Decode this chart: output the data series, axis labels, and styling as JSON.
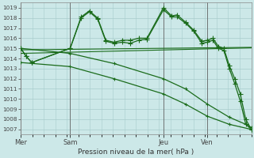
{
  "bg_color": "#cce8e8",
  "grid_color": "#a8cccc",
  "line_color": "#1a6b1a",
  "xlabel": "Pression niveau de la mer( hPa )",
  "ylim": [
    1006.5,
    1019.5
  ],
  "yticks": [
    1007,
    1008,
    1009,
    1010,
    1011,
    1012,
    1013,
    1014,
    1015,
    1016,
    1017,
    1018,
    1019
  ],
  "day_labels": [
    "Mer",
    "Sam",
    "Jeu",
    "Ven"
  ],
  "day_positions": [
    0,
    18,
    52,
    68
  ],
  "xlim": [
    0,
    84
  ],
  "series_main": [
    [
      0,
      1015.0
    ],
    [
      2,
      1014.2
    ],
    [
      4,
      1013.6
    ],
    [
      18,
      1015.0
    ],
    [
      22,
      1018.1
    ],
    [
      25,
      1018.7
    ],
    [
      28,
      1018.0
    ],
    [
      31,
      1015.8
    ],
    [
      34,
      1015.6
    ],
    [
      37,
      1015.8
    ],
    [
      40,
      1015.8
    ],
    [
      43,
      1016.0
    ],
    [
      46,
      1016.0
    ],
    [
      52,
      1019.0
    ],
    [
      55,
      1018.2
    ],
    [
      57,
      1018.3
    ],
    [
      60,
      1017.6
    ],
    [
      63,
      1016.8
    ],
    [
      66,
      1015.7
    ],
    [
      68,
      1015.8
    ],
    [
      70,
      1016.0
    ],
    [
      72,
      1015.2
    ],
    [
      74,
      1015.0
    ],
    [
      76,
      1013.3
    ],
    [
      78,
      1012.0
    ],
    [
      80,
      1010.5
    ],
    [
      82,
      1008.0
    ],
    [
      84,
      1007.0
    ]
  ],
  "series_main2": [
    [
      0,
      1015.0
    ],
    [
      2,
      1014.2
    ],
    [
      4,
      1013.6
    ],
    [
      18,
      1015.0
    ],
    [
      22,
      1018.0
    ],
    [
      25,
      1018.6
    ],
    [
      28,
      1017.9
    ],
    [
      31,
      1015.7
    ],
    [
      34,
      1015.5
    ],
    [
      37,
      1015.6
    ],
    [
      40,
      1015.5
    ],
    [
      43,
      1015.8
    ],
    [
      46,
      1015.9
    ],
    [
      52,
      1018.8
    ],
    [
      55,
      1018.1
    ],
    [
      57,
      1018.1
    ],
    [
      60,
      1017.5
    ],
    [
      63,
      1016.7
    ],
    [
      66,
      1015.5
    ],
    [
      68,
      1015.6
    ],
    [
      70,
      1015.8
    ],
    [
      72,
      1015.0
    ],
    [
      74,
      1014.8
    ],
    [
      76,
      1013.0
    ],
    [
      78,
      1011.5
    ],
    [
      80,
      1009.8
    ],
    [
      82,
      1007.5
    ],
    [
      84,
      1007.0
    ]
  ],
  "series_linear_up": [
    [
      0,
      1014.85
    ],
    [
      84,
      1015.1
    ]
  ],
  "series_linear_up2": [
    [
      0,
      1014.5
    ],
    [
      84,
      1015.05
    ]
  ],
  "series_diagonal_down": [
    [
      0,
      1015.0
    ],
    [
      18,
      1014.5
    ],
    [
      34,
      1013.5
    ],
    [
      52,
      1012.0
    ],
    [
      60,
      1011.0
    ],
    [
      68,
      1009.5
    ],
    [
      76,
      1008.2
    ],
    [
      82,
      1007.5
    ],
    [
      84,
      1007.2
    ]
  ],
  "series_diagonal_down2": [
    [
      0,
      1013.6
    ],
    [
      18,
      1013.2
    ],
    [
      34,
      1012.0
    ],
    [
      52,
      1010.5
    ],
    [
      60,
      1009.5
    ],
    [
      68,
      1008.3
    ],
    [
      76,
      1007.5
    ],
    [
      84,
      1007.0
    ]
  ]
}
